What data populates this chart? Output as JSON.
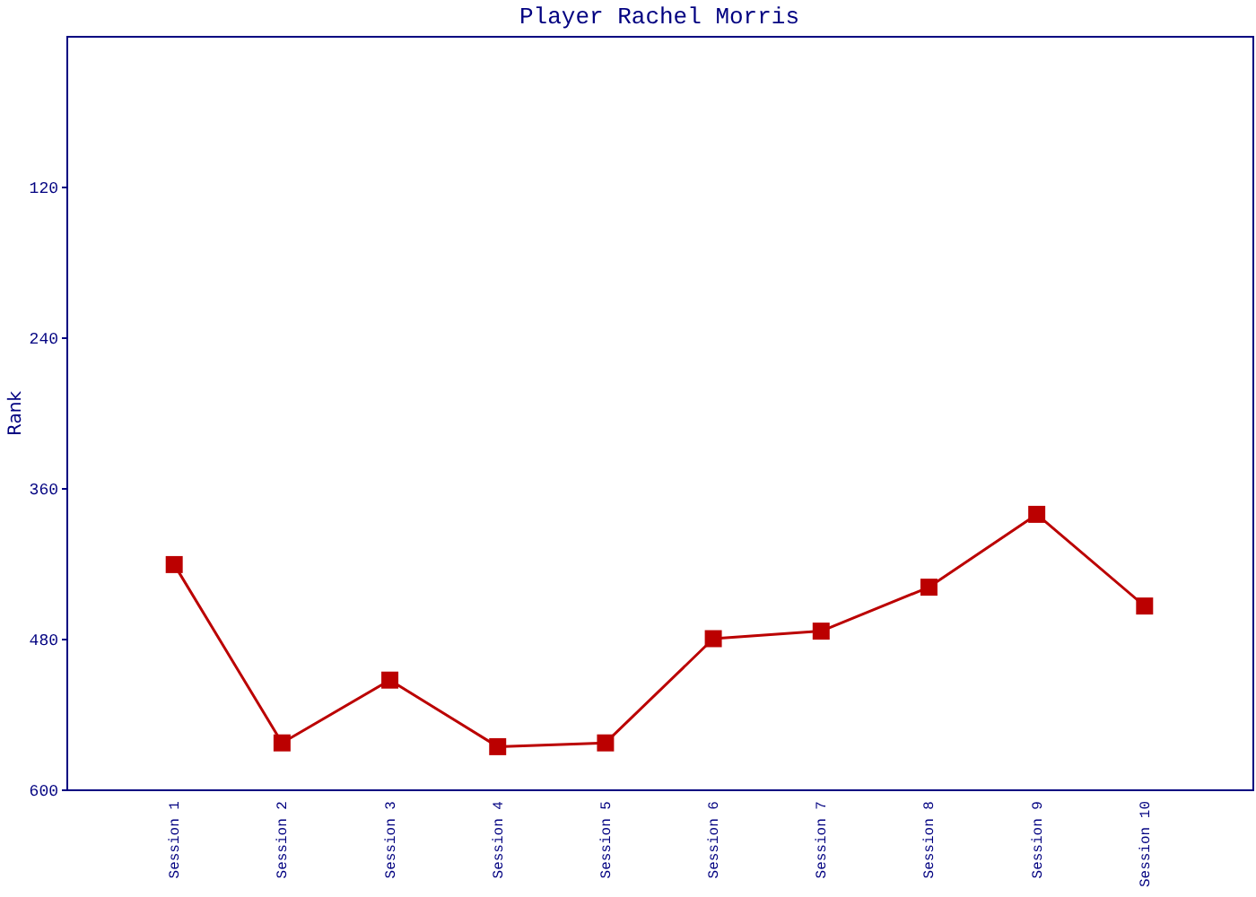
{
  "chart_data": {
    "type": "line",
    "title": "Player Rachel Morris",
    "ylabel": "Rank",
    "categories": [
      "Session 1",
      "Session 2",
      "Session 3",
      "Session 4",
      "Session 5",
      "Session 6",
      "Session 7",
      "Session 8",
      "Session 9",
      "Session 10"
    ],
    "series": [
      {
        "color": "#bb0000",
        "values": [
          421,
          563,
          513,
          566,
          563,
          480,
          474,
          439,
          381,
          454
        ]
      }
    ],
    "ylim": [
      600,
      0
    ],
    "yticks": [
      120,
      240,
      360,
      480,
      600
    ],
    "grid": false,
    "marker": "square",
    "line_style": "solid"
  }
}
